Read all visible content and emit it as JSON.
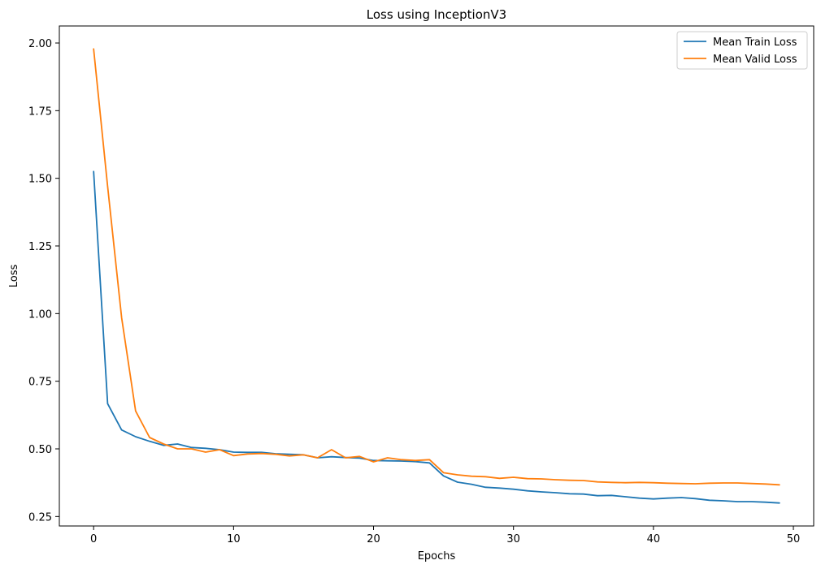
{
  "chart_data": {
    "type": "line",
    "title": "Loss using InceptionV3",
    "xlabel": "Epochs",
    "ylabel": "Loss",
    "xlim": [
      -2.45,
      51.45
    ],
    "ylim": [
      0.215,
      2.063
    ],
    "xticks": [
      0,
      10,
      20,
      30,
      40,
      50
    ],
    "xtick_labels": [
      "0",
      "10",
      "20",
      "30",
      "40",
      "50"
    ],
    "yticks": [
      0.25,
      0.5,
      0.75,
      1.0,
      1.25,
      1.5,
      1.75,
      2.0
    ],
    "ytick_labels": [
      "0.25",
      "0.50",
      "0.75",
      "1.00",
      "1.25",
      "1.50",
      "1.75",
      "2.00"
    ],
    "grid": false,
    "legend_position": "top-right",
    "x": [
      0,
      1,
      2,
      3,
      4,
      5,
      6,
      7,
      8,
      9,
      10,
      11,
      12,
      13,
      14,
      15,
      16,
      17,
      18,
      19,
      20,
      21,
      22,
      23,
      24,
      25,
      26,
      27,
      28,
      29,
      30,
      31,
      32,
      33,
      34,
      35,
      36,
      37,
      38,
      39,
      40,
      41,
      42,
      43,
      44,
      45,
      46,
      47,
      48,
      49
    ],
    "series": [
      {
        "name": "Mean Train Loss",
        "color": "#1f77b4",
        "values": [
          1.525,
          0.667,
          0.57,
          0.545,
          0.528,
          0.513,
          0.518,
          0.505,
          0.502,
          0.497,
          0.488,
          0.487,
          0.487,
          0.482,
          0.48,
          0.478,
          0.467,
          0.471,
          0.468,
          0.466,
          0.457,
          0.456,
          0.455,
          0.453,
          0.448,
          0.4,
          0.377,
          0.369,
          0.358,
          0.355,
          0.351,
          0.345,
          0.341,
          0.338,
          0.334,
          0.333,
          0.327,
          0.328,
          0.323,
          0.318,
          0.315,
          0.318,
          0.32,
          0.316,
          0.31,
          0.308,
          0.305,
          0.305,
          0.303,
          0.3
        ]
      },
      {
        "name": "Mean Valid Loss",
        "color": "#ff7f0e",
        "values": [
          1.978,
          1.47,
          0.985,
          0.64,
          0.542,
          0.518,
          0.5,
          0.5,
          0.488,
          0.497,
          0.475,
          0.481,
          0.483,
          0.48,
          0.474,
          0.478,
          0.467,
          0.497,
          0.467,
          0.472,
          0.452,
          0.467,
          0.46,
          0.457,
          0.46,
          0.412,
          0.404,
          0.399,
          0.397,
          0.391,
          0.395,
          0.39,
          0.389,
          0.386,
          0.384,
          0.383,
          0.378,
          0.376,
          0.375,
          0.376,
          0.375,
          0.373,
          0.372,
          0.371,
          0.373,
          0.374,
          0.374,
          0.372,
          0.37,
          0.367
        ]
      }
    ]
  }
}
